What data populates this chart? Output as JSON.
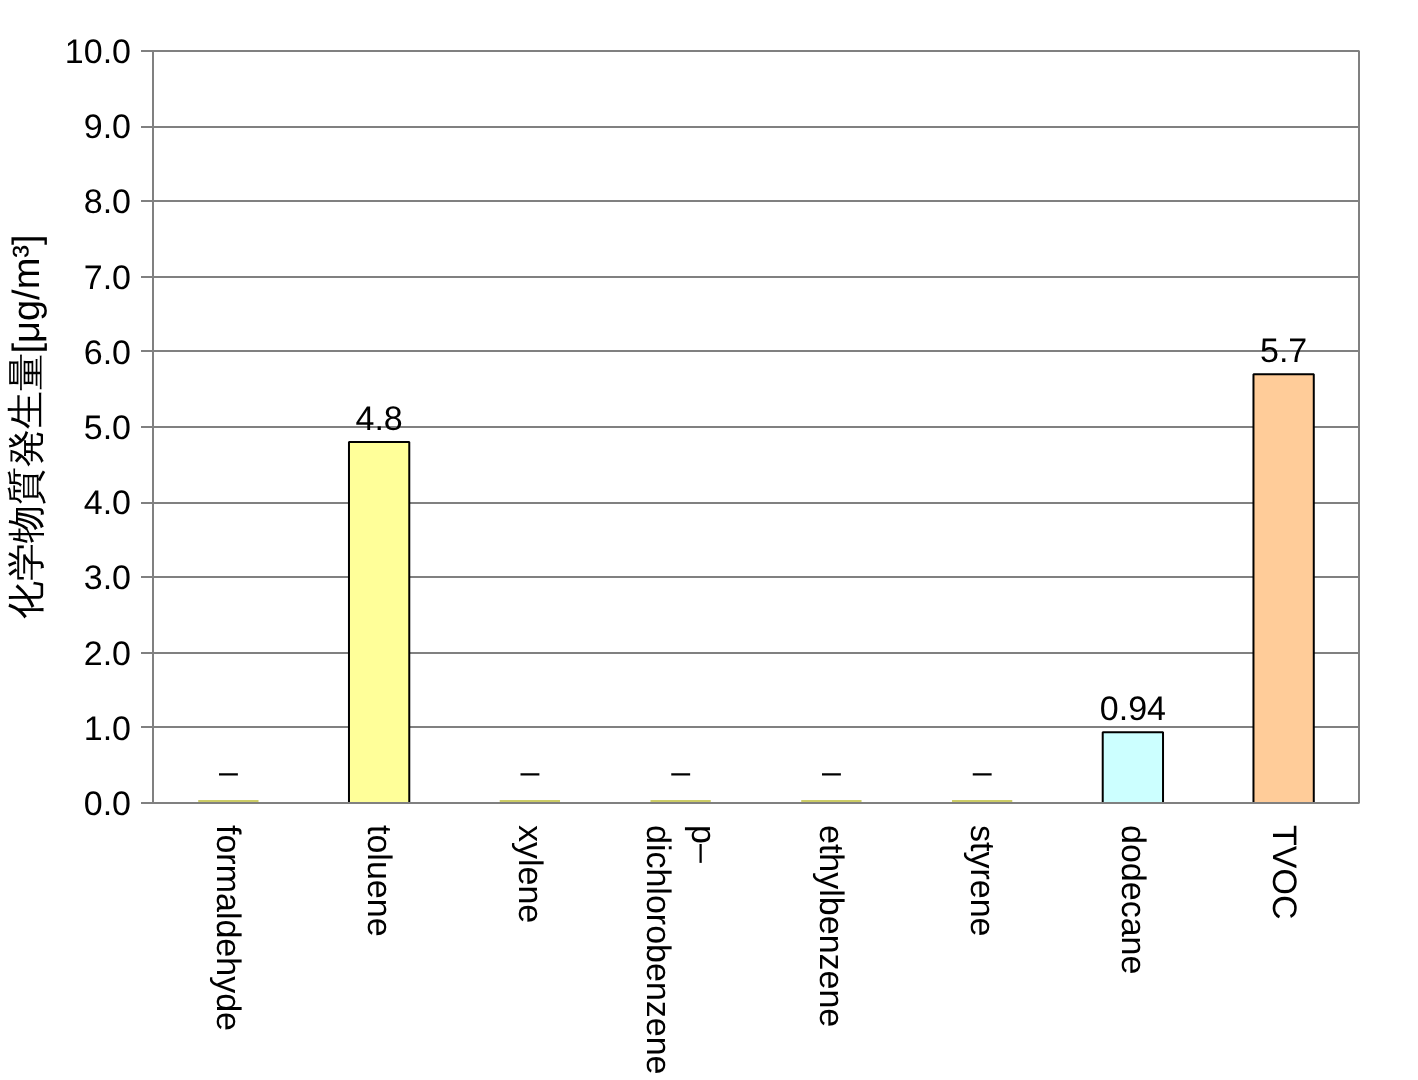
{
  "chart_data": {
    "type": "bar",
    "ylabel": "化学物質発生量[μg/m³]",
    "categories": [
      "formaldehyde",
      "toluene",
      "xylene",
      "p–dichlorobenzene",
      "ethylbenzene",
      "styrene",
      "dodecane",
      "TVOC"
    ],
    "values": [
      0,
      4.8,
      0,
      0,
      0,
      0,
      0.94,
      5.7
    ],
    "colors": [
      "#cccc66",
      "#ffff99",
      "#cccc66",
      "#cccc66",
      "#cccc66",
      "#cccc66",
      "#ccffff",
      "#ffcc99"
    ],
    "value_labels": [
      "–",
      "4.8",
      "–",
      "–",
      "–",
      "–",
      "0.94",
      "5.7"
    ],
    "ylim": [
      0,
      10
    ],
    "yticks": [
      {
        "value": 0,
        "label": "0.0"
      },
      {
        "value": 1,
        "label": "1.0"
      },
      {
        "value": 2,
        "label": "2.0"
      },
      {
        "value": 3,
        "label": "3.0"
      },
      {
        "value": 4,
        "label": "4.0"
      },
      {
        "value": 5,
        "label": "5.0"
      },
      {
        "value": 6,
        "label": "6.0"
      },
      {
        "value": 7,
        "label": "7.0"
      },
      {
        "value": 8,
        "label": "8.0"
      },
      {
        "value": 9,
        "label": "9.0"
      },
      {
        "value": 10,
        "label": "10.0"
      }
    ],
    "grid": "y"
  }
}
